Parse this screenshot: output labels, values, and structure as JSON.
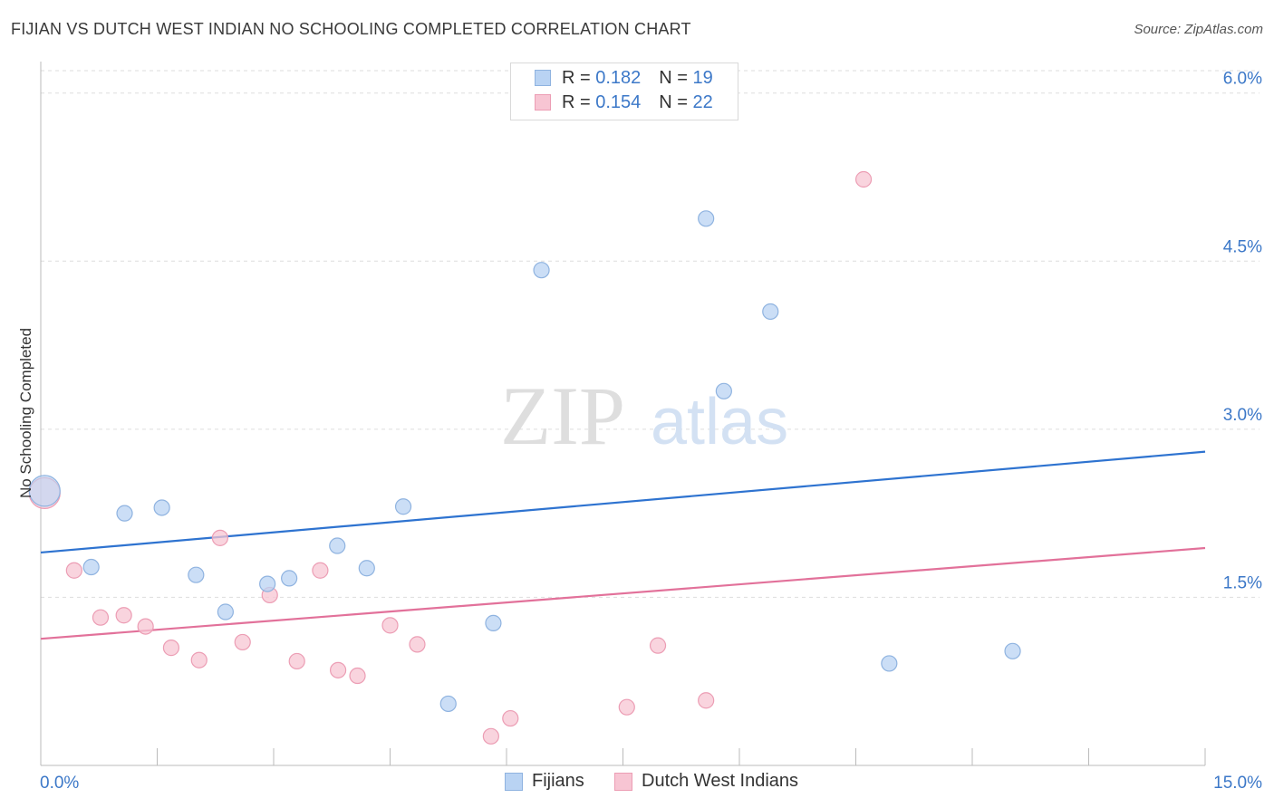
{
  "header": {
    "title": "FIJIAN VS DUTCH WEST INDIAN NO SCHOOLING COMPLETED CORRELATION CHART",
    "source": "Source: ZipAtlas.com"
  },
  "legend": {
    "rows": [
      {
        "r_label": "R =",
        "r_value": "0.182",
        "n_label": "N =",
        "n_value": "19"
      },
      {
        "r_label": "R =",
        "r_value": "0.154",
        "n_label": "N =",
        "n_value": "22"
      }
    ]
  },
  "bottom_legend": {
    "fijians": "Fijians",
    "dutch": "Dutch West Indians"
  },
  "watermark": {
    "zip": "ZIP",
    "atlas": "atlas"
  },
  "colors": {
    "fijians_fill": "#b9d3f3",
    "fijians_stroke": "#8fb3e0",
    "fijians_line": "#2e73d0",
    "dutch_fill": "#f7c5d3",
    "dutch_stroke": "#ec9db4",
    "dutch_line": "#e2719a",
    "tick_label": "#3c78c8",
    "grid": "#dddddd"
  },
  "chart_data": {
    "type": "scatter",
    "title": "FIJIAN VS DUTCH WEST INDIAN NO SCHOOLING COMPLETED CORRELATION CHART",
    "xlabel": "",
    "ylabel": "No Schooling Completed",
    "xlim": [
      0,
      15
    ],
    "ylim": [
      0,
      6.2
    ],
    "x_tick_labels": [
      "0.0%",
      "15.0%"
    ],
    "y_ticks": [
      1.5,
      3.0,
      4.5,
      6.0
    ],
    "y_tick_labels": [
      "1.5%",
      "3.0%",
      "4.5%",
      "6.0%"
    ],
    "grid": true,
    "legend_position": "top-center",
    "series": [
      {
        "name": "Fijians",
        "r": 0.182,
        "n": 19,
        "trend": {
          "x0": 0,
          "y0": 1.9,
          "x1": 15,
          "y1": 2.8
        },
        "points": [
          {
            "x": 0.05,
            "y": 2.45,
            "big": true
          },
          {
            "x": 0.65,
            "y": 1.77
          },
          {
            "x": 1.08,
            "y": 2.25
          },
          {
            "x": 1.56,
            "y": 2.3
          },
          {
            "x": 2.0,
            "y": 1.7
          },
          {
            "x": 2.38,
            "y": 1.37
          },
          {
            "x": 2.92,
            "y": 1.62
          },
          {
            "x": 3.2,
            "y": 1.67
          },
          {
            "x": 3.82,
            "y": 1.96
          },
          {
            "x": 4.2,
            "y": 1.76
          },
          {
            "x": 4.67,
            "y": 2.31
          },
          {
            "x": 5.25,
            "y": 0.55
          },
          {
            "x": 5.83,
            "y": 1.27
          },
          {
            "x": 6.45,
            "y": 4.42
          },
          {
            "x": 8.57,
            "y": 4.88
          },
          {
            "x": 8.8,
            "y": 3.34
          },
          {
            "x": 9.4,
            "y": 4.05
          },
          {
            "x": 10.93,
            "y": 0.91
          },
          {
            "x": 12.52,
            "y": 1.02
          }
        ]
      },
      {
        "name": "Dutch West Indians",
        "r": 0.154,
        "n": 22,
        "trend": {
          "x0": 0,
          "y0": 1.13,
          "x1": 15,
          "y1": 1.94
        },
        "points": [
          {
            "x": 0.05,
            "y": 2.43,
            "big": true
          },
          {
            "x": 0.43,
            "y": 1.74
          },
          {
            "x": 0.77,
            "y": 1.32
          },
          {
            "x": 1.07,
            "y": 1.34
          },
          {
            "x": 1.35,
            "y": 1.24
          },
          {
            "x": 1.68,
            "y": 1.05
          },
          {
            "x": 2.04,
            "y": 0.94
          },
          {
            "x": 2.31,
            "y": 2.03
          },
          {
            "x": 2.6,
            "y": 1.1
          },
          {
            "x": 2.95,
            "y": 1.52
          },
          {
            "x": 3.3,
            "y": 0.93
          },
          {
            "x": 3.6,
            "y": 1.74
          },
          {
            "x": 3.83,
            "y": 0.85
          },
          {
            "x": 4.08,
            "y": 0.8
          },
          {
            "x": 4.5,
            "y": 1.25
          },
          {
            "x": 4.85,
            "y": 1.08
          },
          {
            "x": 5.8,
            "y": 0.26
          },
          {
            "x": 6.05,
            "y": 0.42
          },
          {
            "x": 7.55,
            "y": 0.52
          },
          {
            "x": 7.95,
            "y": 1.07
          },
          {
            "x": 8.57,
            "y": 0.58
          },
          {
            "x": 10.6,
            "y": 5.23
          }
        ]
      }
    ]
  }
}
